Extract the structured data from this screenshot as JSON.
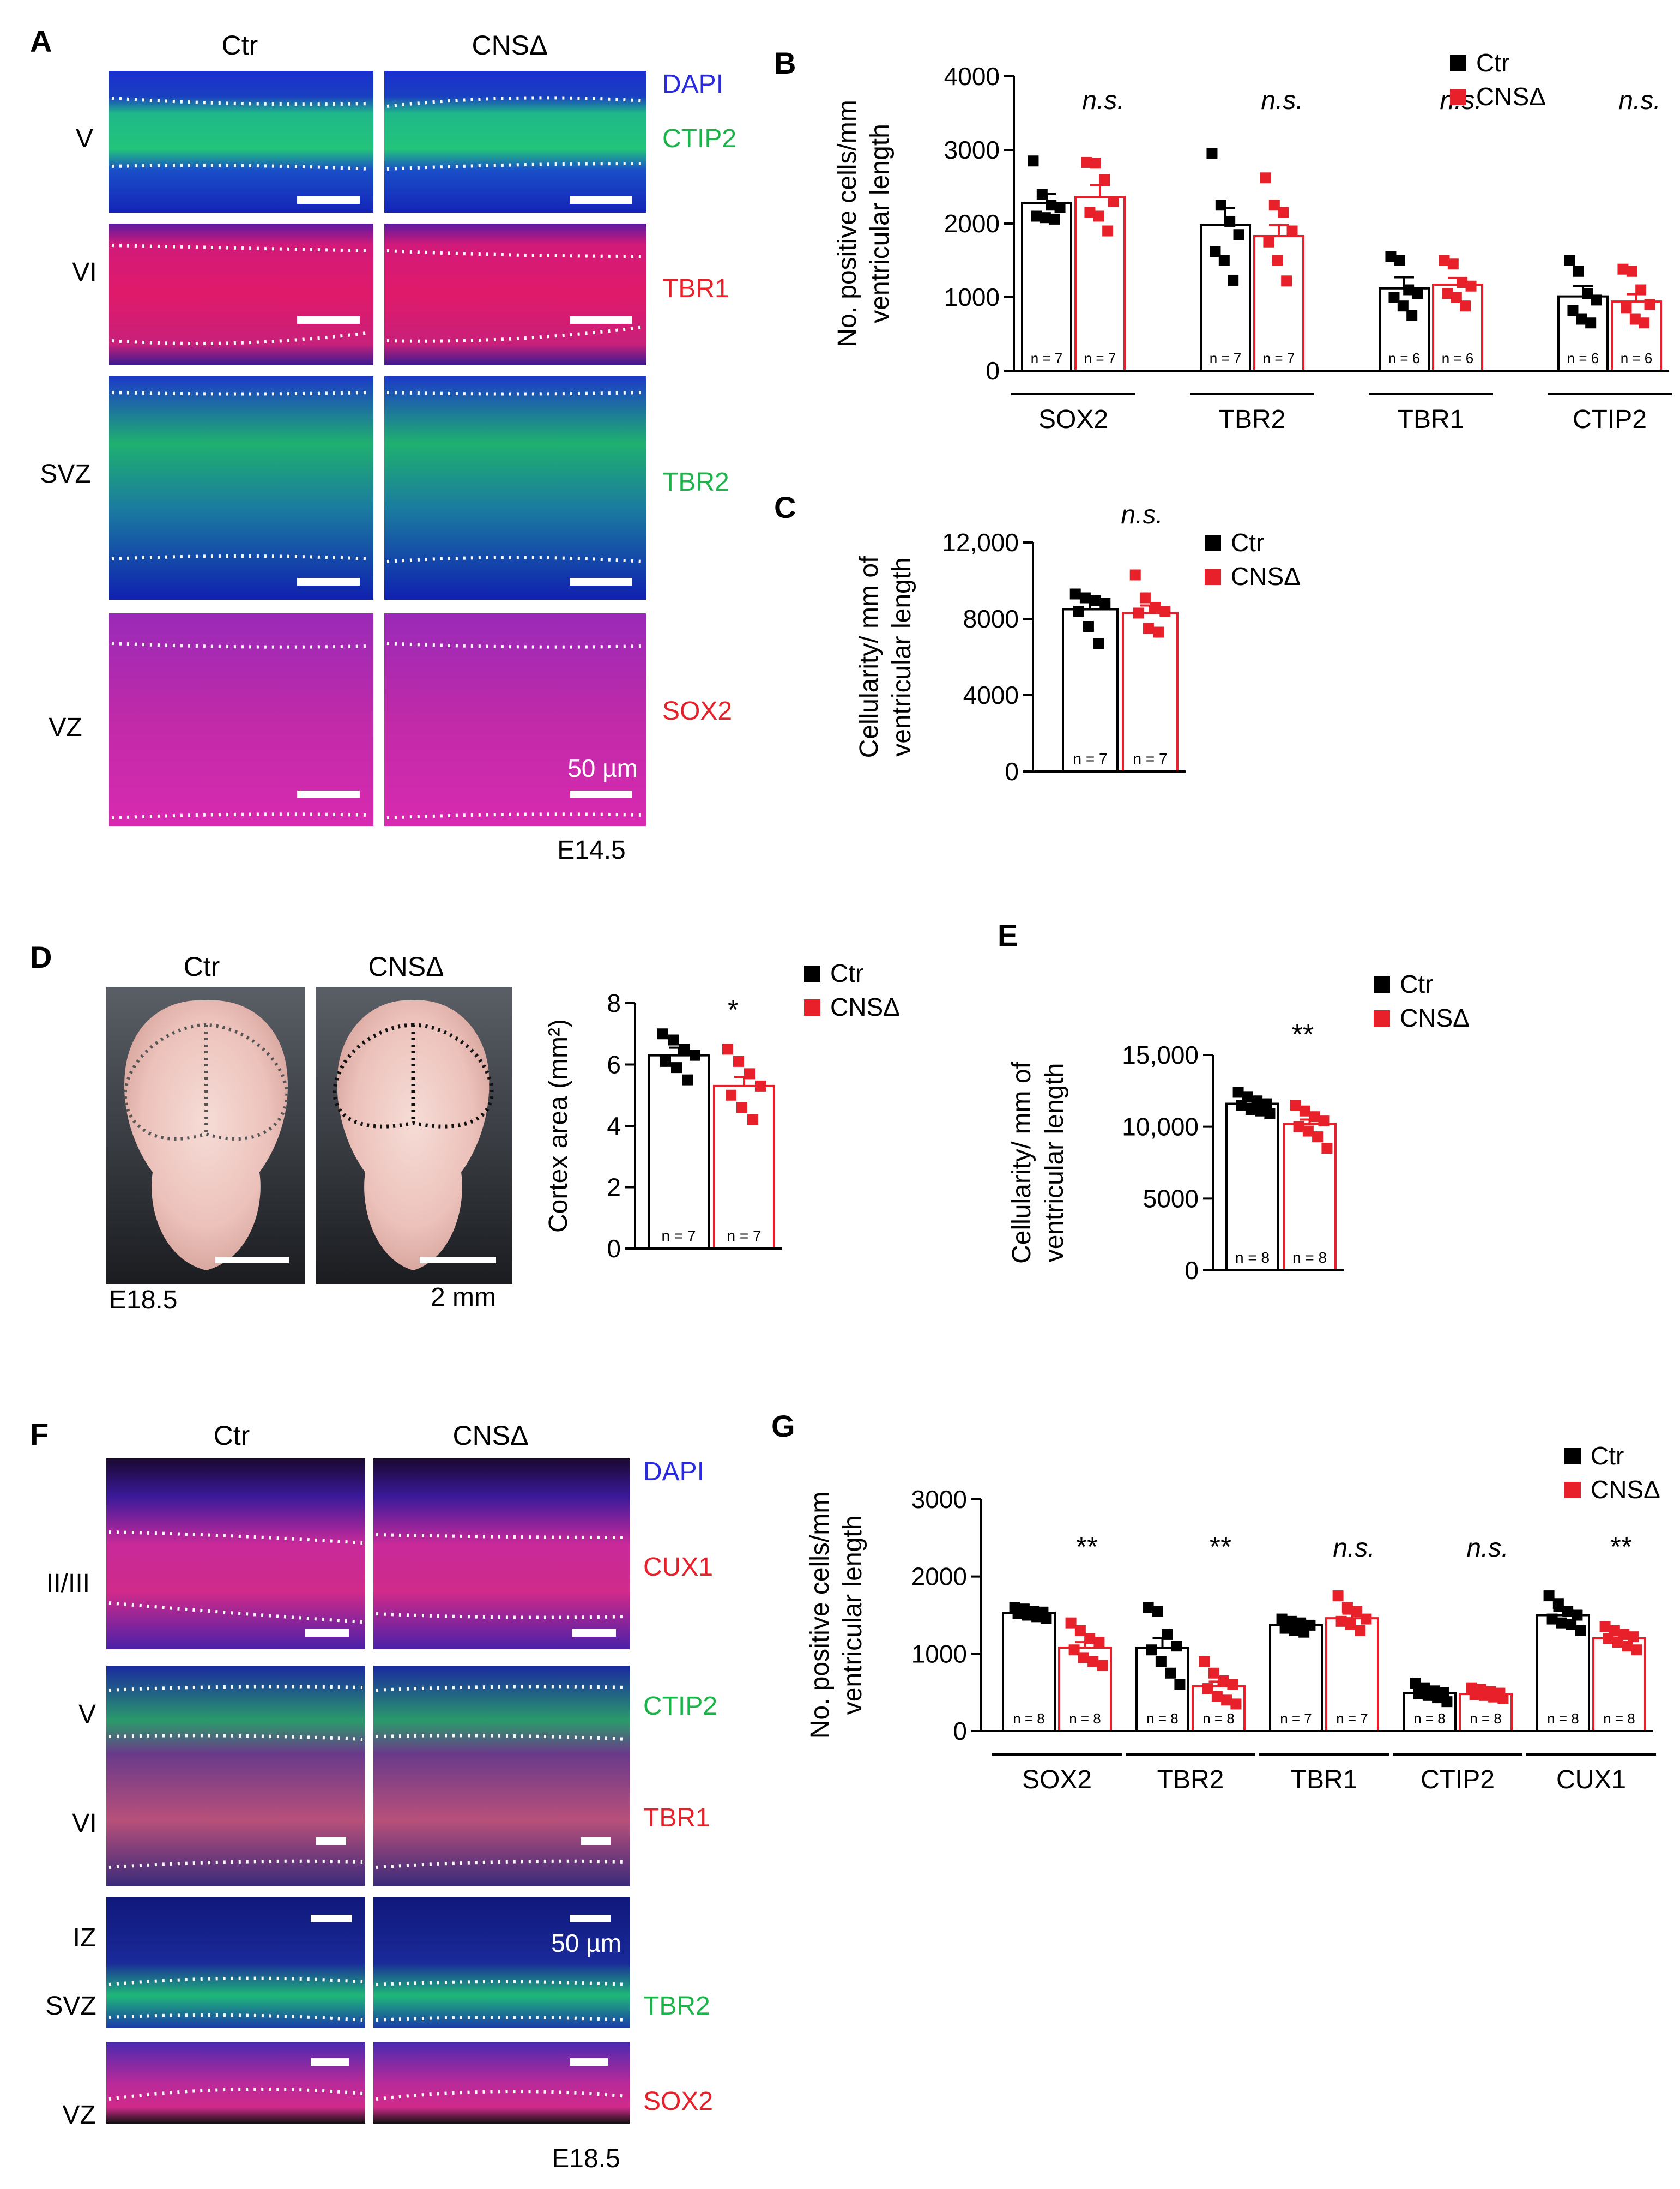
{
  "colors": {
    "ctr": "#000000",
    "cns": "#e8202a",
    "dapi": "#2a2ae0",
    "green": "#1bb34a",
    "red": "#e8202a"
  },
  "panelA": {
    "letter": "A",
    "col_labels": [
      "Ctr",
      "CNSΔ"
    ],
    "rows": [
      {
        "region": "V",
        "markers": [
          {
            "text": "DAPI",
            "color": "dapi"
          },
          {
            "text": "CTIP2",
            "color": "green"
          }
        ]
      },
      {
        "region": "VI",
        "markers": [
          {
            "text": "TBR1",
            "color": "red"
          }
        ]
      },
      {
        "region": "SVZ",
        "markers": [
          {
            "text": "TBR2",
            "color": "green"
          }
        ]
      },
      {
        "region": "VZ",
        "markers": [
          {
            "text": "SOX2",
            "color": "red"
          }
        ]
      }
    ],
    "scale_label": "50 µm",
    "stage": "E14.5"
  },
  "panelD": {
    "letter": "D",
    "col_labels": [
      "Ctr",
      "CNSΔ"
    ],
    "stage": "E18.5",
    "scale_label": "2 mm"
  },
  "panelF": {
    "letter": "F",
    "col_labels": [
      "Ctr",
      "CNSΔ"
    ],
    "rows": [
      {
        "regions": [
          "II/III"
        ],
        "markers": [
          {
            "text": "DAPI",
            "color": "dapi"
          },
          {
            "text": "CUX1",
            "color": "red"
          }
        ]
      },
      {
        "regions": [
          "V",
          "VI"
        ],
        "markers": [
          {
            "text": "CTIP2",
            "color": "green"
          },
          {
            "text": "TBR1",
            "color": "red"
          }
        ]
      },
      {
        "regions": [
          "IZ",
          "SVZ"
        ],
        "markers": [
          {
            "text": "TBR2",
            "color": "green"
          }
        ]
      },
      {
        "regions": [
          "VZ"
        ],
        "markers": [
          {
            "text": "SOX2",
            "color": "red"
          }
        ]
      }
    ],
    "scale_label": "50 µm",
    "stage": "E18.5"
  },
  "chart_data": [
    {
      "panel": "B",
      "type": "bar",
      "ylabel": [
        "No. positive cells/mm",
        "ventricular length"
      ],
      "yticks": [
        "0",
        "1000",
        "2000",
        "3000",
        "4000"
      ],
      "ylim": [
        0,
        4000
      ],
      "categories": [
        "SOX2",
        "TBR2",
        "TBR1",
        "CTIP2"
      ],
      "legend": [
        "Ctr",
        "CNSΔ"
      ],
      "series": [
        {
          "name": "Ctr",
          "values": [
            2280,
            1980,
            1120,
            1010
          ],
          "sem": [
            120,
            230,
            150,
            140
          ],
          "n": [
            "n = 7",
            "n = 7",
            "n = 6",
            "n = 6"
          ],
          "points": [
            [
              2850,
              2400,
              2250,
              2220,
              2100,
              2080,
              2060
            ],
            [
              2950,
              2250,
              2030,
              1850,
              1620,
              1500,
              1230
            ],
            [
              1550,
              1500,
              1100,
              1050,
              1000,
              880,
              750
            ],
            [
              1500,
              1350,
              1050,
              960,
              820,
              700,
              650
            ]
          ]
        },
        {
          "name": "CNSΔ",
          "values": [
            2360,
            1830,
            1170,
            940
          ],
          "sem": [
            160,
            150,
            90,
            100
          ],
          "n": [
            "n = 7",
            "n = 7",
            "n = 6",
            "n = 6"
          ],
          "points": [
            [
              2830,
              2820,
              2600,
              2300,
              2150,
              2100,
              1900
            ],
            [
              2620,
              2250,
              2150,
              1900,
              1750,
              1500,
              1220
            ],
            [
              1500,
              1450,
              1200,
              1150,
              1050,
              1000,
              880
            ],
            [
              1380,
              1350,
              1100,
              900,
              850,
              700,
              650
            ]
          ]
        }
      ],
      "significance": [
        "n.s.",
        "n.s.",
        "n.s.",
        "n.s."
      ]
    },
    {
      "panel": "C",
      "type": "bar",
      "ylabel": [
        "Cellularity/ mm of",
        "ventricular length"
      ],
      "yticks": [
        "0",
        "4000",
        "8000",
        "12,000"
      ],
      "ylim": [
        0,
        12000
      ],
      "categories": [
        ""
      ],
      "legend": [
        "Ctr",
        "CNSΔ"
      ],
      "series": [
        {
          "name": "Ctr",
          "values": [
            8500
          ],
          "sem": [
            450
          ],
          "n": [
            "n = 7"
          ],
          "points": [
            [
              9300,
              9100,
              8950,
              8800,
              8400,
              7600,
              6700
            ]
          ]
        },
        {
          "name": "CNSΔ",
          "values": [
            8300
          ],
          "sem": [
            400
          ],
          "n": [
            "n = 7"
          ],
          "points": [
            [
              10300,
              9100,
              8600,
              8400,
              8300,
              7500,
              7300
            ]
          ]
        }
      ],
      "significance": [
        "n.s."
      ]
    },
    {
      "panel": "D",
      "type": "bar",
      "ylabel": [
        "Cortex area (mm²)"
      ],
      "yticks": [
        "0",
        "2",
        "4",
        "6",
        "8"
      ],
      "ylim": [
        0,
        8
      ],
      "categories": [
        ""
      ],
      "legend": [
        "Ctr",
        "CNSΔ"
      ],
      "series": [
        {
          "name": "Ctr",
          "values": [
            6.3
          ],
          "sem": [
            0.25
          ],
          "n": [
            "n = 7"
          ],
          "points": [
            [
              7.0,
              6.8,
              6.5,
              6.3,
              6.1,
              5.9,
              5.5
            ]
          ]
        },
        {
          "name": "CNSΔ",
          "values": [
            5.3
          ],
          "sem": [
            0.3
          ],
          "n": [
            "n = 7"
          ],
          "points": [
            [
              6.5,
              6.1,
              5.7,
              5.3,
              5.0,
              4.6,
              4.2
            ]
          ]
        }
      ],
      "significance": [
        "*"
      ]
    },
    {
      "panel": "E",
      "type": "bar",
      "ylabel": [
        "Cellularity/ mm of",
        "ventricular length"
      ],
      "yticks": [
        "0",
        "5000",
        "10,000",
        "15,000"
      ],
      "ylim": [
        0,
        15000
      ],
      "categories": [
        ""
      ],
      "legend": [
        "Ctr",
        "CNSΔ"
      ],
      "series": [
        {
          "name": "Ctr",
          "values": [
            11600
          ],
          "sem": [
            250
          ],
          "n": [
            "n = 8"
          ],
          "points": [
            [
              12400,
              12100,
              11800,
              11600,
              11500,
              11200,
              11100,
              10900
            ]
          ]
        },
        {
          "name": "CNSΔ",
          "values": [
            10200
          ],
          "sem": [
            300
          ],
          "n": [
            "n = 8"
          ],
          "points": [
            [
              11500,
              11100,
              10700,
              10400,
              10000,
              9700,
              9300,
              8500
            ]
          ]
        }
      ],
      "significance": [
        "**"
      ]
    },
    {
      "panel": "G",
      "type": "bar",
      "ylabel": [
        "No. positive cells/mm",
        "ventricular length"
      ],
      "yticks": [
        "0",
        "1000",
        "2000",
        "3000"
      ],
      "ylim": [
        0,
        3000
      ],
      "categories": [
        "SOX2",
        "TBR2",
        "TBR1",
        "CTIP2",
        "CUX1"
      ],
      "legend": [
        "Ctr",
        "CNSΔ"
      ],
      "series": [
        {
          "name": "Ctr",
          "values": [
            1530,
            1080,
            1370,
            490,
            1500
          ],
          "sem": [
            40,
            120,
            50,
            30,
            60
          ],
          "n": [
            "n = 8",
            "n = 8",
            "n = 7",
            "n = 8",
            "n = 8"
          ],
          "points": [
            [
              1600,
              1580,
              1550,
              1540,
              1520,
              1500,
              1480,
              1460
            ],
            [
              1600,
              1550,
              1250,
              1100,
              1050,
              900,
              750,
              600
            ],
            [
              1450,
              1420,
              1400,
              1370,
              1330,
              1300,
              1280
            ],
            [
              620,
              560,
              520,
              500,
              480,
              460,
              430,
              380
            ],
            [
              1750,
              1650,
              1550,
              1500,
              1450,
              1400,
              1380,
              1300
            ]
          ]
        },
        {
          "name": "CNSΔ",
          "values": [
            1080,
            580,
            1460,
            480,
            1200
          ],
          "sem": [
            70,
            60,
            60,
            25,
            40
          ],
          "n": [
            "n = 8",
            "n = 8",
            "n = 7",
            "n = 8",
            "n = 8"
          ],
          "points": [
            [
              1400,
              1300,
              1200,
              1150,
              1050,
              950,
              900,
              850
            ],
            [
              900,
              750,
              650,
              600,
              550,
              450,
              400,
              350
            ],
            [
              1750,
              1600,
              1550,
              1450,
              1420,
              1380,
              1300
            ],
            [
              560,
              540,
              510,
              490,
              470,
              460,
              440,
              420
            ],
            [
              1350,
              1300,
              1250,
              1220,
              1200,
              1150,
              1100,
              1050
            ]
          ]
        }
      ],
      "significance": [
        "**",
        "**",
        "n.s.",
        "n.s.",
        "**"
      ]
    }
  ]
}
